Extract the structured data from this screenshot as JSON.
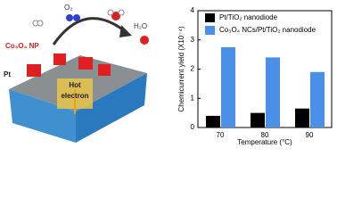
{
  "chart_data": {
    "type": "bar",
    "y_label": "Chemicurrent yield (X10⁻⁴)",
    "x_label": "Temperature (°C)",
    "categories": [
      "70",
      "80",
      "90"
    ],
    "series": [
      {
        "name": "Pt/TiO₂ nanodiode",
        "color": "#000000",
        "values": [
          0.4,
          0.5,
          0.65
        ]
      },
      {
        "name": "Co₃O₄ NCs/Pt/TiO₂ nanodiode",
        "color": "#4a90e8",
        "values": [
          2.75,
          2.4,
          1.9
        ]
      }
    ],
    "ylim": [
      0,
      4
    ],
    "yticks": [
      0,
      1,
      2,
      3,
      4
    ],
    "legend": "upper-left"
  },
  "illustration": {
    "h2": "H₂",
    "o2": "O₂",
    "h2o": "H₂O",
    "np": "Co₃O₄ NP",
    "pt": "Pt",
    "hot": "Hot",
    "electron": "electron"
  }
}
